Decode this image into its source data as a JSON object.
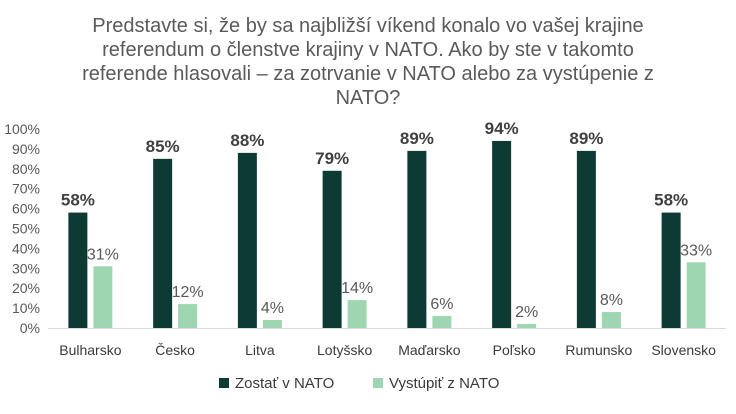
{
  "chart_data": {
    "type": "bar",
    "title_lines": [
      "Predstavte si, že by sa najbližší víkend konalo vo vašej krajine",
      "referendum o členstve krajiny v NATO. Ako by ste v takomto",
      "referende hlasovali – za zotrvanie v NATO alebo za vystúpenie z",
      "NATO?"
    ],
    "categories": [
      "Bulharsko",
      "Česko",
      "Litva",
      "Lotyšsko",
      "Maďarsko",
      "Poľsko",
      "Rumunsko",
      "Slovensko"
    ],
    "series": [
      {
        "name": "Zostať v NATO",
        "values": [
          58,
          85,
          88,
          79,
          89,
          94,
          89,
          58
        ],
        "labels": [
          "58%",
          "85%",
          "88%",
          "79%",
          "89%",
          "94%",
          "89%",
          "58%"
        ],
        "color": "#0d3b34"
      },
      {
        "name": "Vystúpiť z NATO",
        "values": [
          31,
          12,
          4,
          14,
          6,
          2,
          8,
          33
        ],
        "labels": [
          "31%",
          "12%",
          "4%",
          "14%",
          "6%",
          "2%",
          "8%",
          "33%"
        ],
        "color": "#9dd6b1"
      }
    ],
    "y_ticks": [
      "0%",
      "10%",
      "20%",
      "30%",
      "40%",
      "50%",
      "60%",
      "70%",
      "80%",
      "90%",
      "100%"
    ],
    "ylim": [
      0,
      100
    ],
    "grid": false,
    "legend_position": "bottom"
  }
}
